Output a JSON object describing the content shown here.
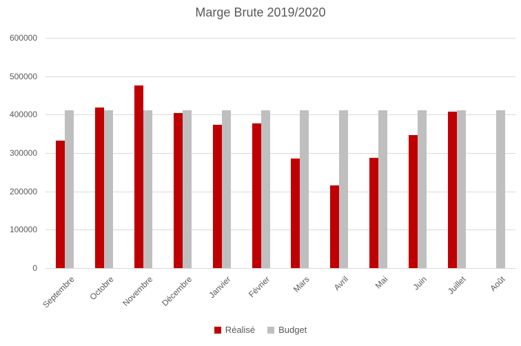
{
  "chart_data": {
    "type": "bar",
    "title": "Marge Brute 2019/2020",
    "categories": [
      "Septembre",
      "Octobre",
      "Novembre",
      "Décembre",
      "Janvier",
      "Février",
      "Mars",
      "Avril",
      "Mai",
      "Juin",
      "Juillet",
      "Août"
    ],
    "series": [
      {
        "name": "Réalisé",
        "color": "#C00000",
        "values": [
          332000,
          419000,
          476000,
          405000,
          374000,
          377000,
          286000,
          215000,
          288000,
          347000,
          408000,
          0
        ]
      },
      {
        "name": "Budget",
        "color": "#BFBFBF",
        "values": [
          412000,
          412000,
          412000,
          412000,
          412000,
          412000,
          412000,
          412000,
          412000,
          412000,
          412000,
          412000
        ]
      }
    ],
    "xlabel": "",
    "ylabel": "",
    "ylim": [
      0,
      600000
    ],
    "ytick_step": 100000,
    "yticks": [
      "600000",
      "500000",
      "400000",
      "300000",
      "200000",
      "100000",
      "0"
    ],
    "grid": "horizontal-on",
    "legend_position": "bottom-center",
    "colors": {
      "grid": "#D9D9D9",
      "text": "#595959",
      "background": "#FFFFFF"
    }
  }
}
